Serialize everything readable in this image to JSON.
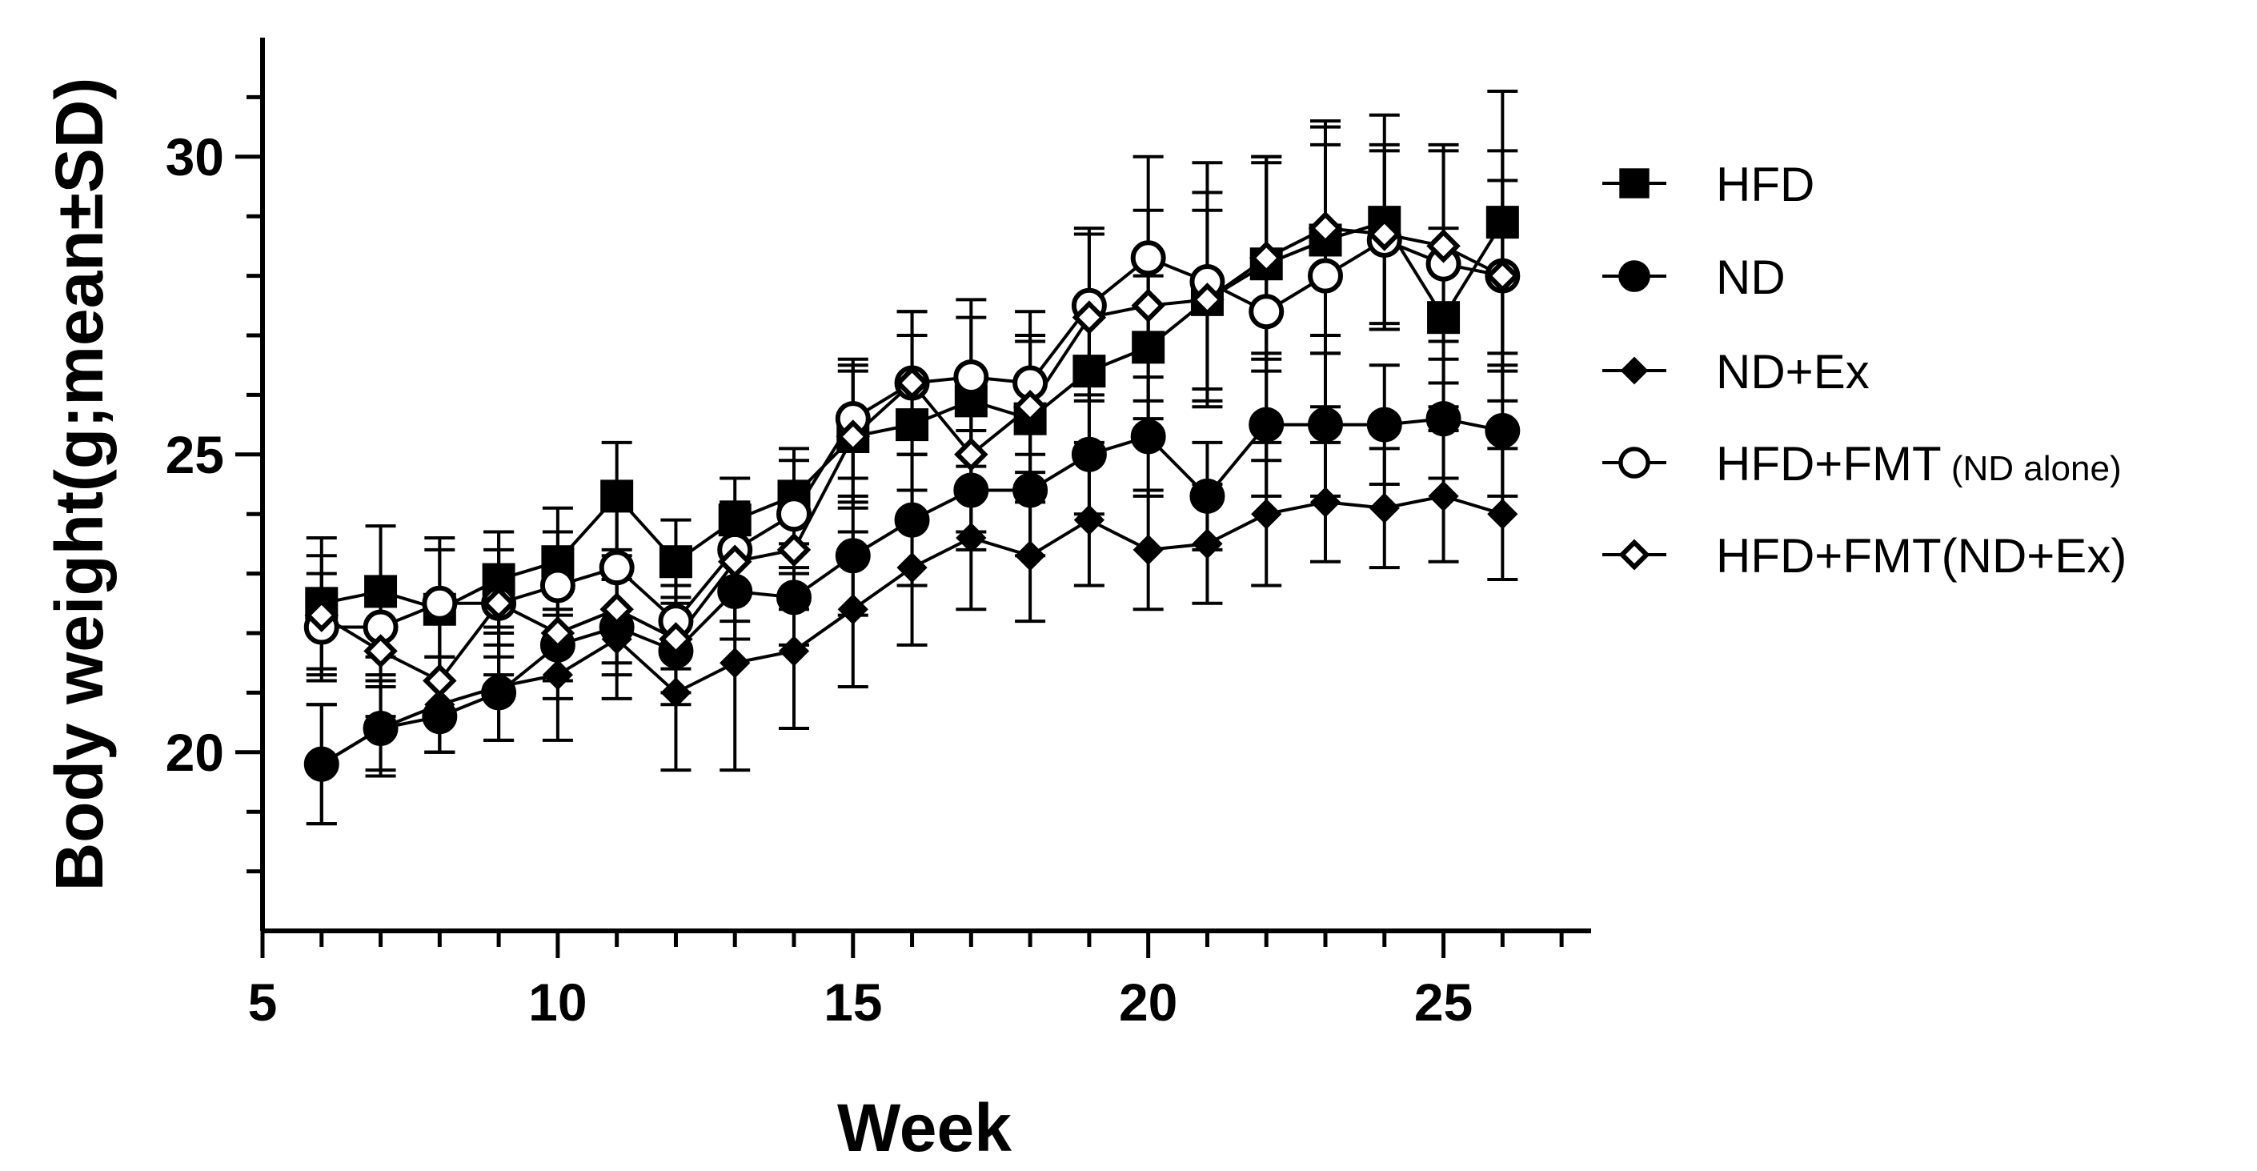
{
  "chart_data": {
    "type": "line",
    "title": "",
    "xlabel": "Week",
    "ylabel": "Body weight(g;mean±SD)",
    "xlim": [
      5,
      27.5
    ],
    "ylim": [
      17.0,
      32.0
    ],
    "xticks": [
      5,
      10,
      15,
      20,
      25
    ],
    "yticks": [
      20,
      25,
      30
    ],
    "grid": false,
    "legend_position": "right",
    "series": [
      {
        "name": "HFD",
        "marker": "square-filled",
        "x": [
          6,
          7,
          8,
          9,
          10,
          11,
          12,
          13,
          14,
          15,
          16,
          17,
          18,
          19,
          20,
          21,
          22,
          23,
          24,
          25,
          26
        ],
        "values": [
          22.5,
          22.7,
          22.4,
          22.9,
          23.2,
          24.3,
          23.2,
          23.9,
          24.3,
          25.3,
          25.5,
          25.9,
          25.6,
          26.4,
          26.8,
          27.6,
          28.2,
          28.6,
          28.9,
          27.3,
          28.9
        ],
        "sd": [
          1.1,
          1.1,
          1.2,
          0.8,
          0.9,
          0.9,
          0.7,
          0.7,
          0.8,
          1.2,
          1.5,
          1.4,
          1.4,
          1.2,
          1.2,
          1.5,
          1.8,
          1.9,
          1.8,
          1.5,
          2.2
        ]
      },
      {
        "name": "ND",
        "marker": "circle-filled",
        "x": [
          6,
          7,
          8,
          9,
          10,
          11,
          12,
          13,
          14,
          15,
          16,
          17,
          18,
          19,
          20,
          21,
          22,
          23,
          24,
          25,
          26
        ],
        "values": [
          19.8,
          20.4,
          20.6,
          21.0,
          21.8,
          22.1,
          21.7,
          22.7,
          22.6,
          23.3,
          23.9,
          24.4,
          24.4,
          25.0,
          25.3,
          24.3,
          25.5,
          25.5,
          25.5,
          25.6,
          25.4
        ],
        "sd": [
          1.0,
          0.7,
          0.6,
          0.8,
          0.9,
          0.8,
          0.9,
          0.8,
          0.8,
          1.0,
          1.1,
          1.0,
          1.1,
          1.0,
          1.0,
          0.9,
          1.2,
          1.2,
          1.0,
          1.0,
          1.1
        ]
      },
      {
        "name": "ND+Ex",
        "marker": "diamond-filled",
        "x": [
          6,
          7,
          8,
          9,
          10,
          11,
          12,
          13,
          14,
          15,
          16,
          17,
          18,
          19,
          20,
          21,
          22,
          23,
          24,
          25,
          26
        ],
        "values": [
          19.8,
          20.4,
          20.8,
          21.1,
          21.3,
          21.9,
          21.0,
          21.5,
          21.7,
          22.4,
          23.1,
          23.6,
          23.3,
          23.9,
          23.4,
          23.5,
          24.0,
          24.2,
          24.1,
          24.3,
          24.0
        ],
        "sd": [
          1.0,
          0.8,
          0.8,
          0.9,
          1.1,
          1.0,
          1.3,
          1.8,
          1.3,
          1.3,
          1.3,
          1.2,
          1.1,
          1.1,
          1.0,
          1.0,
          1.2,
          1.0,
          1.0,
          1.1,
          1.1
        ]
      },
      {
        "name": "HFD+FMT (ND alone)",
        "marker": "circle-open",
        "x": [
          6,
          7,
          8,
          9,
          10,
          11,
          12,
          13,
          14,
          15,
          16,
          17,
          18,
          19,
          20,
          21,
          22,
          23,
          24,
          25,
          26
        ],
        "values": [
          22.1,
          22.1,
          22.5,
          22.5,
          22.8,
          23.1,
          22.2,
          23.4,
          24.0,
          25.6,
          26.2,
          26.3,
          26.2,
          27.5,
          28.3,
          27.9,
          27.4,
          28.0,
          28.6,
          28.2,
          28.0
        ],
        "sd": [
          0.9,
          0.8,
          0.9,
          0.9,
          0.9,
          1.0,
          0.8,
          0.8,
          0.9,
          1.0,
          1.2,
          1.3,
          1.2,
          1.3,
          1.7,
          2.0,
          2.5,
          2.2,
          1.5,
          2.0,
          2.1
        ]
      },
      {
        "name": "HFD+FMT(ND+Ex)",
        "marker": "diamond-open",
        "x": [
          6,
          7,
          8,
          9,
          10,
          11,
          12,
          13,
          14,
          15,
          16,
          17,
          18,
          19,
          20,
          21,
          22,
          23,
          24,
          25,
          26
        ],
        "values": [
          22.3,
          21.7,
          21.2,
          22.5,
          22.0,
          22.4,
          21.9,
          23.2,
          23.4,
          25.3,
          26.2,
          25.0,
          25.8,
          27.3,
          27.5,
          27.6,
          28.3,
          28.8,
          28.7,
          28.5,
          28.0
        ],
        "sd": [
          1.0,
          1.1,
          1.2,
          1.2,
          0.8,
          0.9,
          0.9,
          1.0,
          1.0,
          1.1,
          1.2,
          1.3,
          1.1,
          1.4,
          1.6,
          1.8,
          1.7,
          1.8,
          1.5,
          1.6,
          1.6
        ]
      }
    ],
    "legend": [
      {
        "label": "HFD",
        "suffix": ""
      },
      {
        "label": "ND",
        "suffix": ""
      },
      {
        "label": "ND+Ex",
        "suffix": ""
      },
      {
        "label": "HFD+FMT",
        "suffix": " (ND alone)"
      },
      {
        "label": "HFD+FMT(ND+Ex)",
        "suffix": ""
      }
    ]
  }
}
